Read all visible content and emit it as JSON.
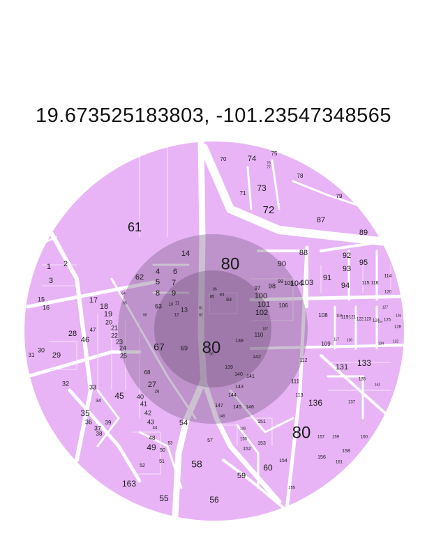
{
  "coordinates": "19.673525183803, -101.23547348565",
  "colors": {
    "parcel_fill": "#e8b4f6",
    "roads": "#ffffff",
    "outer_ring": "#b58bc4",
    "inner_ring": "#9d7aab",
    "text": "#1a1a1a"
  },
  "zone_labels": [
    "80",
    "80",
    "80"
  ],
  "parcel_labels": [
    "1",
    "2",
    "3",
    "13",
    "14",
    "15",
    "16",
    "17",
    "18",
    "19",
    "20",
    "21",
    "22",
    "23",
    "24",
    "25",
    "26",
    "27",
    "28",
    "29",
    "30",
    "31",
    "32",
    "33",
    "34",
    "35",
    "36",
    "37",
    "38",
    "39",
    "40",
    "41",
    "42",
    "43",
    "44",
    "45",
    "46",
    "47",
    "48",
    "49",
    "50",
    "51",
    "52",
    "53",
    "54",
    "55",
    "56",
    "57",
    "58",
    "59",
    "60",
    "61",
    "62",
    "63",
    "64",
    "65",
    "66",
    "67",
    "68",
    "69",
    "70",
    "71",
    "72",
    "73",
    "74",
    "75",
    "76",
    "77",
    "78",
    "79",
    "81",
    "82",
    "83",
    "84",
    "85",
    "86",
    "87",
    "88",
    "89",
    "90",
    "91",
    "92",
    "93",
    "94",
    "95",
    "96",
    "97",
    "98",
    "99",
    "100",
    "101",
    "102",
    "103",
    "104",
    "105",
    "106",
    "107",
    "108",
    "109",
    "110",
    "111",
    "112",
    "113",
    "114",
    "115",
    "116",
    "117",
    "118",
    "119",
    "120",
    "121",
    "122",
    "123",
    "124",
    "125",
    "126",
    "127",
    "128",
    "129",
    "130",
    "131",
    "132",
    "133",
    "134",
    "135",
    "136",
    "137",
    "138",
    "139",
    "140",
    "141",
    "142",
    "143",
    "144",
    "145",
    "146",
    "147",
    "148",
    "149",
    "150",
    "151",
    "152",
    "153",
    "154",
    "155",
    "156",
    "157",
    "158",
    "159",
    "160",
    "161",
    "162",
    "163",
    "4",
    "5",
    "6",
    "7",
    "8",
    "9",
    "10",
    "11",
    "12"
  ]
}
